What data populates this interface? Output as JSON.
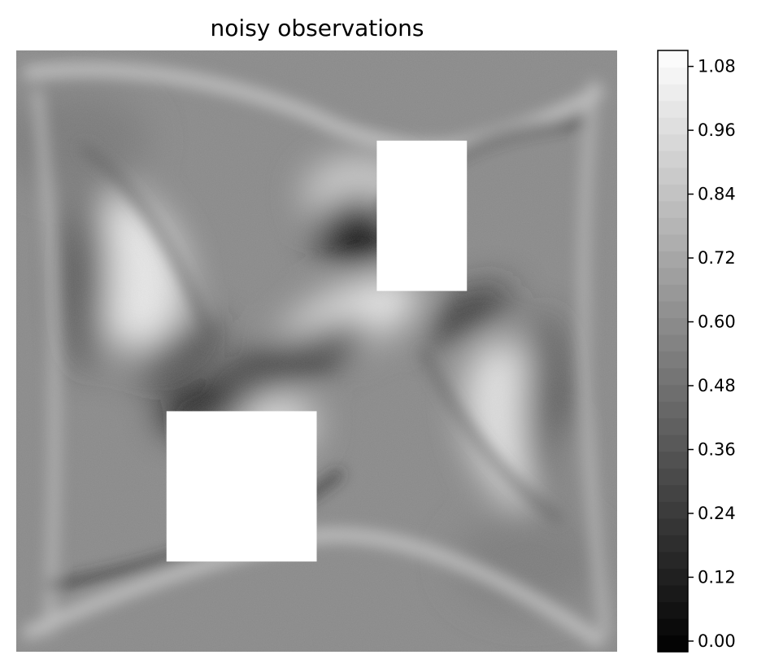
{
  "chart_data": [
    {
      "type": "heatmap",
      "title": "noisy observations",
      "colormap": "gray",
      "axes_visible": false,
      "masked_regions": [
        {
          "name": "upper-right-mask",
          "x": [
            0.6,
            0.75
          ],
          "y": [
            0.6,
            0.85
          ]
        },
        {
          "name": "lower-left-mask",
          "x": [
            0.25,
            0.5
          ],
          "y": [
            0.15,
            0.4
          ]
        }
      ],
      "features": [
        {
          "name": "left-bright-lobe",
          "kind": "bright",
          "x": 0.19,
          "y": 0.63
        },
        {
          "name": "right-bright-lobe",
          "kind": "bright",
          "x": 0.83,
          "y": 0.38
        },
        {
          "name": "center-bright-band",
          "kind": "bright",
          "x": 0.55,
          "y": 0.55
        },
        {
          "name": "center-dark-band",
          "kind": "dark",
          "x": 0.45,
          "y": 0.48
        },
        {
          "name": "upper-dark-core",
          "kind": "dark",
          "x": 0.57,
          "y": 0.7
        },
        {
          "name": "lower-dark-core",
          "kind": "dark",
          "x": 0.31,
          "y": 0.4
        }
      ],
      "colorbar": {
        "ticks": [
          "0.00",
          "0.12",
          "0.24",
          "0.36",
          "0.48",
          "0.60",
          "0.72",
          "0.84",
          "0.96",
          "1.08"
        ],
        "tick_values": [
          0.0,
          0.12,
          0.24,
          0.36,
          0.48,
          0.6,
          0.72,
          0.84,
          0.96,
          1.08
        ],
        "range": [
          -0.02,
          1.11
        ],
        "levels": 36
      }
    }
  ]
}
